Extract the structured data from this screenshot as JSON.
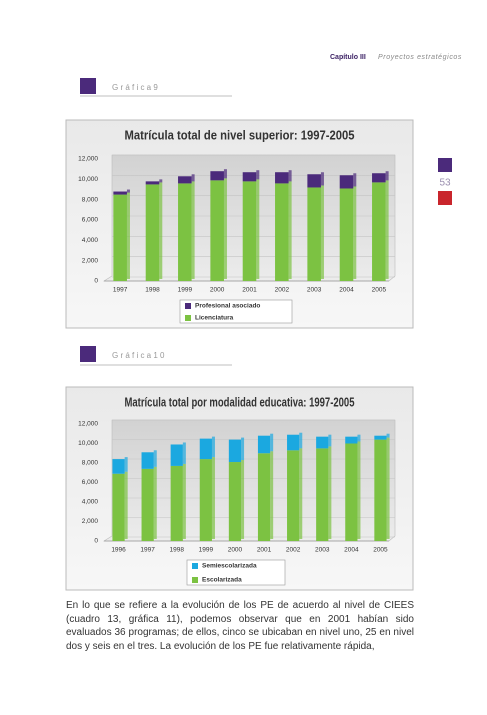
{
  "header": {
    "chapter": "Capítulo III",
    "section": "Proyectos estratégicos"
  },
  "page_number": "53",
  "figure_labels": [
    "G r á f i c a   9",
    "G r á f i c a   1 0"
  ],
  "paragraph": "En lo que se refiere a la evolución de los PE de acuerdo al nivel de CIEES (cuadro 13, gráfica 11), podemos observar que en 2001 habían sido evaluados 36 programas; de ellos, cinco se ubicaban en nivel uno, 25 en nivel dos y seis en el tres. La evolución de los PE fue relativamente rápida,",
  "chart_data": [
    {
      "type": "bar",
      "stacked": true,
      "title": "Matrícula total de nivel superior: 1997-2005",
      "categories": [
        "1997",
        "1998",
        "1999",
        "2000",
        "2001",
        "2002",
        "2003",
        "2004",
        "2005"
      ],
      "series": [
        {
          "name": "Profesional asociado",
          "color": "#4b2a7b",
          "values": [
            300,
            300,
            700,
            900,
            900,
            1100,
            1300,
            1300,
            900
          ]
        },
        {
          "name": "Licenciatura",
          "color": "#7cc242",
          "values": [
            8500,
            9500,
            9600,
            9900,
            9800,
            9600,
            9200,
            9100,
            9700
          ]
        }
      ],
      "ylim": [
        0,
        12000
      ],
      "yticks": [
        0,
        {
          "value": 2000,
          "label": "2,000"
        },
        {
          "value": 4000,
          "label": "4,000"
        },
        {
          "value": 6000,
          "label": "6,000"
        },
        {
          "value": 8000,
          "label": "8,000"
        },
        {
          "value": 10000,
          "label": "10,000"
        },
        {
          "value": 12000,
          "label": "12,000"
        }
      ],
      "grid": true
    },
    {
      "type": "bar",
      "stacked": true,
      "title": "Matrícula total por modalidad educativa: 1997-2005",
      "categories": [
        "1996",
        "1997",
        "1998",
        "1999",
        "2000",
        "2001",
        "2002",
        "2003",
        "2004",
        "2005"
      ],
      "series": [
        {
          "name": "Semiescolarizada",
          "color": "#1ba8e0",
          "values": [
            1500,
            1700,
            2200,
            2100,
            2300,
            1800,
            1600,
            1200,
            700,
            400
          ]
        },
        {
          "name": "Escolarizada",
          "color": "#7cc242",
          "values": [
            6900,
            7400,
            7700,
            8400,
            8100,
            9000,
            9300,
            9500,
            10000,
            10400
          ]
        }
      ],
      "ylim": [
        0,
        12000
      ],
      "yticks": [
        0,
        {
          "value": 2000,
          "label": "2,000"
        },
        {
          "value": 4000,
          "label": "4,000"
        },
        {
          "value": 6000,
          "label": "6,000"
        },
        {
          "value": 8000,
          "label": "8,000"
        },
        {
          "value": 10000,
          "label": "10,000"
        },
        {
          "value": 12000,
          "label": "12,000"
        }
      ],
      "grid": true
    }
  ]
}
